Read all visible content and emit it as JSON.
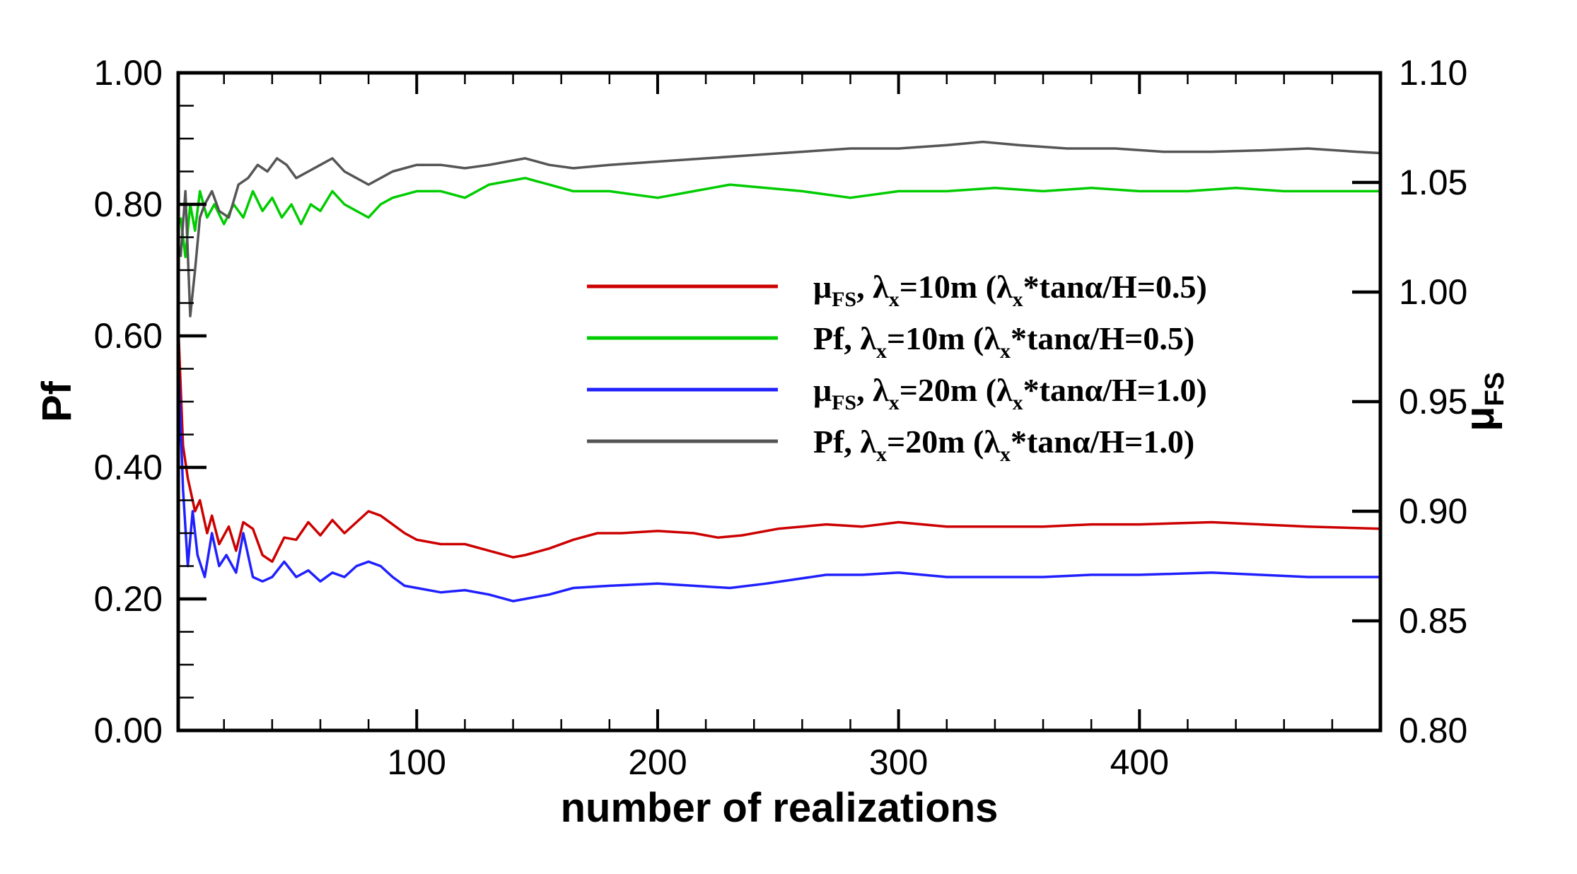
{
  "chart_data": {
    "type": "line",
    "xlabel": "number of realizations",
    "ylabel_left": "Pf",
    "ylabel_right": "μFS",
    "xlim": [
      1,
      500
    ],
    "ylim_left": [
      0.0,
      1.0
    ],
    "ylim_right": [
      0.8,
      1.1
    ],
    "x_ticks": [
      100,
      200,
      300,
      400
    ],
    "x_tick_labels": [
      "100",
      "200",
      "300",
      "400"
    ],
    "y_left_ticks": [
      0.0,
      0.2,
      0.4,
      0.6,
      0.8,
      1.0
    ],
    "y_left_tick_labels": [
      "0.00",
      "0.20",
      "0.40",
      "0.60",
      "0.80",
      "1.00"
    ],
    "y_right_ticks": [
      0.8,
      0.85,
      0.9,
      0.95,
      1.0,
      1.05,
      1.1
    ],
    "y_right_tick_labels": [
      "0.80",
      "0.85",
      "0.90",
      "0.95",
      "1.00",
      "1.05",
      "1.10"
    ],
    "legend_position": "center-right",
    "series": [
      {
        "name": "μFS, λx=10m (λx*tanα/H=0.5)",
        "legend": {
          "sym1": "μ",
          "sub1": "FS",
          "mid": ", λ",
          "sub2": "x",
          "rest1": "=10m (λ",
          "sub3": "x",
          "rest2": "*tanα/H=0.5)"
        },
        "axis": "right",
        "color": "#cc0000",
        "points": [
          [
            1,
            0.985
          ],
          [
            3,
            0.93
          ],
          [
            5,
            0.915
          ],
          [
            8,
            0.9
          ],
          [
            10,
            0.905
          ],
          [
            13,
            0.89
          ],
          [
            15,
            0.898
          ],
          [
            18,
            0.885
          ],
          [
            22,
            0.893
          ],
          [
            25,
            0.882
          ],
          [
            28,
            0.895
          ],
          [
            32,
            0.892
          ],
          [
            36,
            0.88
          ],
          [
            40,
            0.877
          ],
          [
            45,
            0.888
          ],
          [
            50,
            0.887
          ],
          [
            55,
            0.895
          ],
          [
            60,
            0.889
          ],
          [
            65,
            0.896
          ],
          [
            70,
            0.89
          ],
          [
            75,
            0.895
          ],
          [
            80,
            0.9
          ],
          [
            85,
            0.898
          ],
          [
            90,
            0.894
          ],
          [
            95,
            0.89
          ],
          [
            100,
            0.887
          ],
          [
            110,
            0.885
          ],
          [
            120,
            0.885
          ],
          [
            130,
            0.882
          ],
          [
            140,
            0.879
          ],
          [
            145,
            0.88
          ],
          [
            155,
            0.883
          ],
          [
            165,
            0.887
          ],
          [
            175,
            0.89
          ],
          [
            185,
            0.89
          ],
          [
            200,
            0.891
          ],
          [
            215,
            0.89
          ],
          [
            225,
            0.888
          ],
          [
            235,
            0.889
          ],
          [
            250,
            0.892
          ],
          [
            270,
            0.894
          ],
          [
            285,
            0.893
          ],
          [
            300,
            0.895
          ],
          [
            320,
            0.893
          ],
          [
            340,
            0.893
          ],
          [
            360,
            0.893
          ],
          [
            380,
            0.894
          ],
          [
            400,
            0.894
          ],
          [
            430,
            0.895
          ],
          [
            450,
            0.894
          ],
          [
            470,
            0.893
          ],
          [
            500,
            0.892
          ]
        ]
      },
      {
        "name": "Pf, λx=10m (λx*tanα/H=0.5)",
        "legend": {
          "sym1": "Pf",
          "sub1": "",
          "mid": ", λ",
          "sub2": "x",
          "rest1": "=10m (λ",
          "sub3": "x",
          "rest2": "*tanα/H=0.5)"
        },
        "axis": "left",
        "color": "#00cc00",
        "points": [
          [
            2,
            0.78
          ],
          [
            4,
            0.72
          ],
          [
            6,
            0.8
          ],
          [
            8,
            0.76
          ],
          [
            10,
            0.82
          ],
          [
            13,
            0.78
          ],
          [
            16,
            0.8
          ],
          [
            20,
            0.77
          ],
          [
            24,
            0.8
          ],
          [
            28,
            0.78
          ],
          [
            32,
            0.82
          ],
          [
            36,
            0.79
          ],
          [
            40,
            0.81
          ],
          [
            44,
            0.78
          ],
          [
            48,
            0.8
          ],
          [
            52,
            0.77
          ],
          [
            56,
            0.8
          ],
          [
            60,
            0.79
          ],
          [
            65,
            0.82
          ],
          [
            70,
            0.8
          ],
          [
            75,
            0.79
          ],
          [
            80,
            0.78
          ],
          [
            85,
            0.8
          ],
          [
            90,
            0.81
          ],
          [
            100,
            0.82
          ],
          [
            110,
            0.82
          ],
          [
            120,
            0.81
          ],
          [
            130,
            0.83
          ],
          [
            145,
            0.84
          ],
          [
            155,
            0.83
          ],
          [
            165,
            0.82
          ],
          [
            180,
            0.82
          ],
          [
            200,
            0.81
          ],
          [
            215,
            0.82
          ],
          [
            230,
            0.83
          ],
          [
            245,
            0.825
          ],
          [
            260,
            0.82
          ],
          [
            280,
            0.81
          ],
          [
            300,
            0.82
          ],
          [
            320,
            0.82
          ],
          [
            340,
            0.825
          ],
          [
            360,
            0.82
          ],
          [
            380,
            0.825
          ],
          [
            400,
            0.82
          ],
          [
            420,
            0.82
          ],
          [
            440,
            0.825
          ],
          [
            460,
            0.82
          ],
          [
            480,
            0.82
          ],
          [
            500,
            0.82
          ]
        ]
      },
      {
        "name": "μFS, λx=20m (λx*tanα/H=1.0)",
        "legend": {
          "sym1": "μ",
          "sub1": "FS",
          "mid": ", λ",
          "sub2": "x",
          "rest1": "=20m  (λ",
          "sub3": "x",
          "rest2": "*tanα/H=1.0)"
        },
        "axis": "right",
        "color": "#2020ff",
        "points": [
          [
            1,
            0.97
          ],
          [
            3,
            0.91
          ],
          [
            5,
            0.875
          ],
          [
            7,
            0.9
          ],
          [
            9,
            0.88
          ],
          [
            12,
            0.87
          ],
          [
            15,
            0.89
          ],
          [
            18,
            0.875
          ],
          [
            21,
            0.88
          ],
          [
            25,
            0.872
          ],
          [
            28,
            0.89
          ],
          [
            32,
            0.87
          ],
          [
            36,
            0.868
          ],
          [
            40,
            0.87
          ],
          [
            45,
            0.877
          ],
          [
            50,
            0.87
          ],
          [
            55,
            0.873
          ],
          [
            60,
            0.868
          ],
          [
            65,
            0.872
          ],
          [
            70,
            0.87
          ],
          [
            75,
            0.875
          ],
          [
            80,
            0.877
          ],
          [
            85,
            0.875
          ],
          [
            90,
            0.87
          ],
          [
            95,
            0.866
          ],
          [
            100,
            0.865
          ],
          [
            110,
            0.863
          ],
          [
            120,
            0.864
          ],
          [
            130,
            0.862
          ],
          [
            140,
            0.859
          ],
          [
            145,
            0.86
          ],
          [
            155,
            0.862
          ],
          [
            165,
            0.865
          ],
          [
            180,
            0.866
          ],
          [
            200,
            0.867
          ],
          [
            215,
            0.866
          ],
          [
            230,
            0.865
          ],
          [
            245,
            0.867
          ],
          [
            270,
            0.871
          ],
          [
            285,
            0.871
          ],
          [
            300,
            0.872
          ],
          [
            320,
            0.87
          ],
          [
            340,
            0.87
          ],
          [
            360,
            0.87
          ],
          [
            380,
            0.871
          ],
          [
            400,
            0.871
          ],
          [
            430,
            0.872
          ],
          [
            450,
            0.871
          ],
          [
            470,
            0.87
          ],
          [
            500,
            0.87
          ]
        ]
      },
      {
        "name": "Pf, λx=20m (λx*tanα/H=1.0)",
        "legend": {
          "sym1": "Pf",
          "sub1": "",
          "mid": ", λ",
          "sub2": "x",
          "rest1": "=20m  (λ",
          "sub3": "x",
          "rest2": "*tanα/H=1.0)"
        },
        "axis": "left",
        "color": "#555555",
        "points": [
          [
            2,
            0.72
          ],
          [
            4,
            0.82
          ],
          [
            6,
            0.63
          ],
          [
            8,
            0.7
          ],
          [
            10,
            0.78
          ],
          [
            12,
            0.8
          ],
          [
            15,
            0.82
          ],
          [
            18,
            0.79
          ],
          [
            22,
            0.78
          ],
          [
            26,
            0.83
          ],
          [
            30,
            0.84
          ],
          [
            34,
            0.86
          ],
          [
            38,
            0.85
          ],
          [
            42,
            0.87
          ],
          [
            46,
            0.86
          ],
          [
            50,
            0.84
          ],
          [
            55,
            0.85
          ],
          [
            60,
            0.86
          ],
          [
            65,
            0.87
          ],
          [
            70,
            0.85
          ],
          [
            75,
            0.84
          ],
          [
            80,
            0.83
          ],
          [
            85,
            0.84
          ],
          [
            90,
            0.85
          ],
          [
            100,
            0.86
          ],
          [
            110,
            0.86
          ],
          [
            120,
            0.855
          ],
          [
            130,
            0.86
          ],
          [
            145,
            0.87
          ],
          [
            155,
            0.86
          ],
          [
            165,
            0.855
          ],
          [
            180,
            0.86
          ],
          [
            200,
            0.865
          ],
          [
            220,
            0.87
          ],
          [
            240,
            0.875
          ],
          [
            260,
            0.88
          ],
          [
            280,
            0.885
          ],
          [
            300,
            0.885
          ],
          [
            320,
            0.89
          ],
          [
            335,
            0.895
          ],
          [
            350,
            0.89
          ],
          [
            370,
            0.885
          ],
          [
            390,
            0.885
          ],
          [
            410,
            0.88
          ],
          [
            430,
            0.88
          ],
          [
            450,
            0.882
          ],
          [
            470,
            0.885
          ],
          [
            490,
            0.88
          ],
          [
            500,
            0.878
          ]
        ]
      }
    ]
  }
}
